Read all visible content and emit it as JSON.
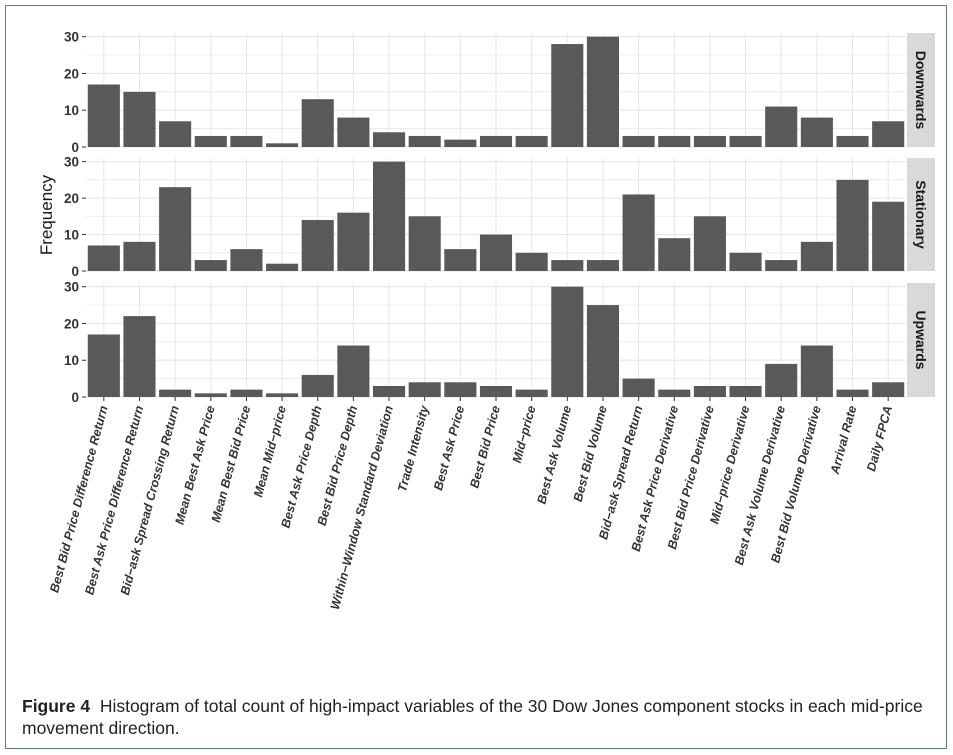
{
  "caption": {
    "label": "Figure 4",
    "text": "Histogram of total count of high-impact variables of the 30 Dow Jones component stocks in each mid-price movement direction."
  },
  "chart_data": {
    "type": "bar",
    "ylabel": "Frequency",
    "y_ticks": [
      0,
      10,
      20,
      30
    ],
    "ylim": [
      0,
      31
    ],
    "grid": true,
    "colors": {
      "bar": "#595959",
      "panel_bg": "#ffffff",
      "grid": "#e6e6e6",
      "strip": "#d9d9d9"
    },
    "categories": [
      "Best Bid Price Difference Return",
      "Best Ask Price Difference Return",
      "Bid−ask Spread Crossing Return",
      "Mean Best Ask Price",
      "Mean Best Bid Price",
      "Mean Mid−price",
      "Best Ask Price Depth",
      "Best Bid Price Depth",
      "Within−Window Standard Deviation",
      "Trade Intensity",
      "Best Ask Price",
      "Best Bid Price",
      "Mid−price",
      "Best Ask Volume",
      "Best Bid Volume",
      "Bid−ask Spread Return",
      "Best Ask Price Derivative",
      "Best Bid Price Derivative",
      "Mid−price Derivative",
      "Best Ask Volume Derivative",
      "Best Bid Volume Derivative",
      "Arrival Rate",
      "Daily FPCA"
    ],
    "series": [
      {
        "name": "Downwards",
        "values": [
          17,
          15,
          7,
          3,
          3,
          1,
          13,
          8,
          4,
          3,
          2,
          3,
          3,
          28,
          30,
          3,
          3,
          3,
          3,
          11,
          8,
          3,
          7
        ]
      },
      {
        "name": "Stationary",
        "values": [
          7,
          8,
          23,
          3,
          6,
          2,
          14,
          16,
          30,
          15,
          6,
          10,
          5,
          3,
          3,
          21,
          9,
          15,
          5,
          3,
          8,
          25,
          19
        ]
      },
      {
        "name": "Upwards",
        "values": [
          17,
          22,
          2,
          1,
          2,
          1,
          6,
          14,
          3,
          4,
          4,
          3,
          2,
          30,
          25,
          5,
          2,
          3,
          3,
          9,
          14,
          2,
          4
        ]
      }
    ]
  }
}
